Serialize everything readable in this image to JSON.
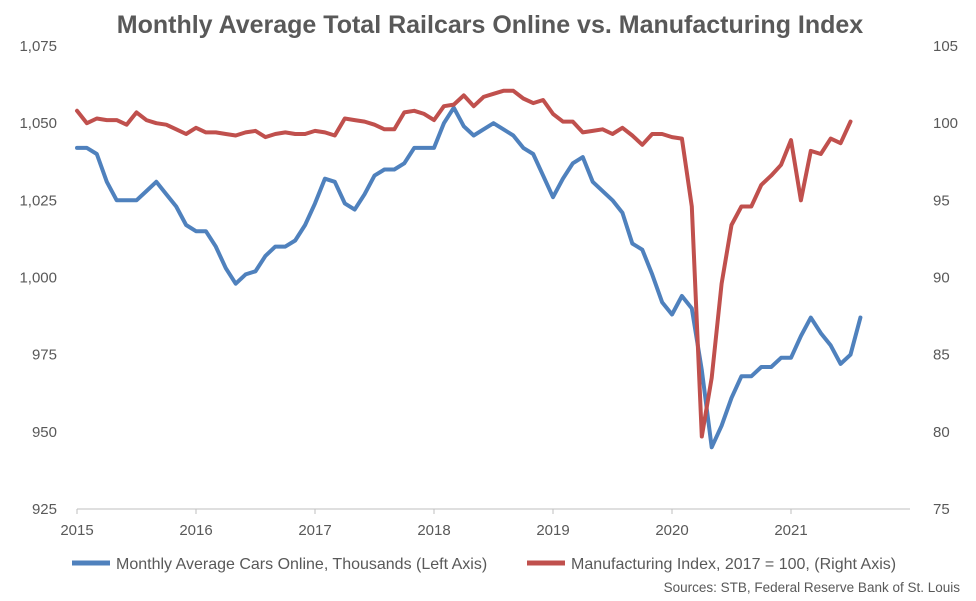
{
  "chart_data": {
    "type": "line",
    "title": "Monthly Average Total Railcars Online vs. Manufacturing Index",
    "source": "Sources:  STB, Federal Reserve Bank of St. Louis",
    "x_start": "2015-01",
    "x_ticks": [
      "2015",
      "2016",
      "2017",
      "2018",
      "2019",
      "2020",
      "2021"
    ],
    "y_left": {
      "ylim": [
        925,
        1075
      ],
      "ticks": [
        "925",
        "950",
        "975",
        "1,000",
        "1,025",
        "1,050",
        "1,075"
      ]
    },
    "y_right": {
      "ylim": [
        75,
        105
      ],
      "ticks": [
        "75",
        "80",
        "85",
        "90",
        "95",
        "100",
        "105"
      ]
    },
    "grid": false,
    "legend_position": "bottom",
    "series": [
      {
        "name": "Monthly Average Cars Online, Thousands (Left Axis)",
        "axis": "left",
        "color": "#4F81BD",
        "values": [
          1042,
          1042,
          1040,
          1031,
          1025,
          1025,
          1025,
          1028,
          1031,
          1027,
          1023,
          1017,
          1015,
          1015,
          1010,
          1003,
          998,
          1001,
          1002,
          1007,
          1010,
          1010,
          1012,
          1017,
          1024,
          1032,
          1031,
          1024,
          1022,
          1027,
          1033,
          1035,
          1035,
          1037,
          1042,
          1042,
          1042,
          1050,
          1055,
          1049,
          1046,
          1048,
          1050,
          1048,
          1046,
          1042,
          1040,
          1033,
          1026,
          1032,
          1037,
          1039,
          1031,
          1028,
          1025,
          1021,
          1011,
          1009,
          1001,
          992,
          988,
          994,
          990,
          970,
          945,
          952,
          961,
          968,
          968,
          971,
          971,
          974,
          974,
          981,
          987,
          982,
          978,
          972,
          975,
          987
        ]
      },
      {
        "name": "Manufacturing Index, 2017 = 100, (Right Axis)",
        "axis": "right",
        "color": "#C0504D",
        "values": [
          100.8,
          100.0,
          100.3,
          100.2,
          100.2,
          99.9,
          100.7,
          100.2,
          100.0,
          99.9,
          99.6,
          99.3,
          99.7,
          99.4,
          99.4,
          99.3,
          99.2,
          99.4,
          99.5,
          99.1,
          99.3,
          99.4,
          99.3,
          99.3,
          99.5,
          99.4,
          99.2,
          100.3,
          100.2,
          100.1,
          99.9,
          99.6,
          99.6,
          100.7,
          100.8,
          100.6,
          100.2,
          101.1,
          101.2,
          101.8,
          101.1,
          101.7,
          101.9,
          102.1,
          102.1,
          101.6,
          101.3,
          101.5,
          100.6,
          100.1,
          100.1,
          99.4,
          99.5,
          99.6,
          99.3,
          99.7,
          99.2,
          98.6,
          99.3,
          99.3,
          99.1,
          99.0,
          94.6,
          79.7,
          83.5,
          89.6,
          93.4,
          94.6,
          94.6,
          96.0,
          96.6,
          97.3,
          98.9,
          95.0,
          98.2,
          98.0,
          99.0,
          98.7,
          100.1
        ]
      }
    ]
  }
}
